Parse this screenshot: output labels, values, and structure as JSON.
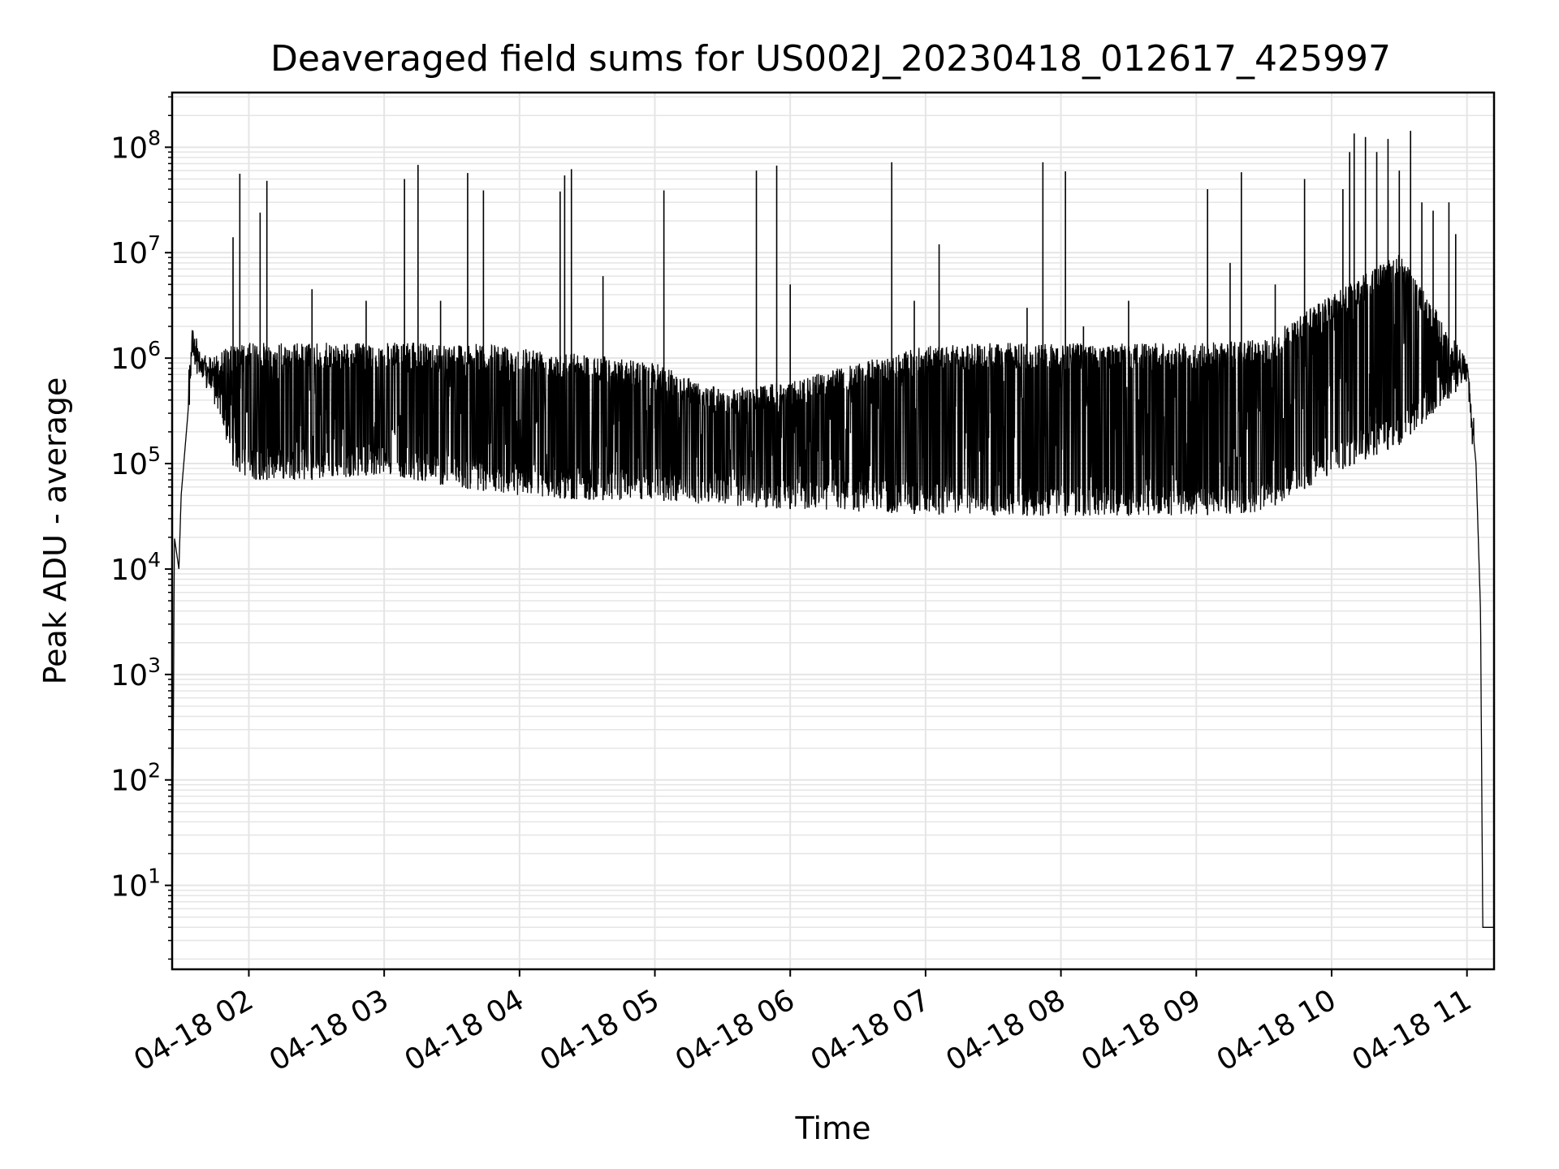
{
  "chart_data": {
    "type": "line",
    "title": "Deaveraged field sums for US002J_20230418_012617_425997",
    "xlabel": "Time",
    "ylabel": "Peak ADU - average",
    "y_scale": "log",
    "xlim": [
      "04-18 01:26",
      "04-18 11:12"
    ],
    "ylim": [
      1.6,
      330000000
    ],
    "grid": true,
    "line_color": "#000000",
    "grid_color": "#e5e5e5",
    "x_ticks": [
      "04-18 02",
      "04-18 03",
      "04-18 04",
      "04-18 05",
      "04-18 06",
      "04-18 07",
      "04-18 08",
      "04-18 09",
      "04-18 10",
      "04-18 11"
    ],
    "y_ticks": [
      {
        "base": "10",
        "exp": "1"
      },
      {
        "base": "10",
        "exp": "2"
      },
      {
        "base": "10",
        "exp": "3"
      },
      {
        "base": "10",
        "exp": "4"
      },
      {
        "base": "10",
        "exp": "5"
      },
      {
        "base": "10",
        "exp": "6"
      },
      {
        "base": "10",
        "exp": "7"
      },
      {
        "base": "10",
        "exp": "8"
      }
    ],
    "series": [
      {
        "x": [
          "04-18 01:26",
          "04-18 01:27",
          "04-18 01:29",
          "04-18 01:30",
          "04-18 01:33",
          "04-18 01:35",
          "04-18 01:38",
          "04-18 01:42",
          "04-18 01:47",
          "04-18 01:52",
          "04-18 02:00",
          "04-18 02:30",
          "04-18 03:00",
          "04-18 03:30",
          "04-18 04:00",
          "04-18 04:30",
          "04-18 05:00",
          "04-18 05:30",
          "04-18 06:00",
          "04-18 06:30",
          "04-18 07:00",
          "04-18 07:30",
          "04-18 08:00",
          "04-18 08:30",
          "04-18 09:00",
          "04-18 09:30",
          "04-18 10:00",
          "04-18 10:30",
          "04-18 11:00",
          "04-18 11:04",
          "04-18 11:06",
          "04-18 11:07",
          "04-18 11:12"
        ],
        "y": [
          3,
          20000,
          10000,
          50000,
          300000,
          1500000,
          800000,
          600000,
          400000,
          350000,
          300000,
          350000,
          400000,
          350000,
          250000,
          180000,
          140000,
          110000,
          90000,
          80000,
          85000,
          90000,
          90000,
          95000,
          110000,
          180000,
          400000,
          900000,
          800000,
          100000,
          4000,
          4,
          4
        ],
        "band_low": [
          3,
          20000,
          10000,
          50000,
          300000,
          1000000,
          600000,
          450000,
          300000,
          100000,
          70000,
          70000,
          80000,
          60000,
          50000,
          45000,
          45000,
          40000,
          37000,
          35000,
          33000,
          32000,
          32000,
          32000,
          32000,
          35000,
          80000,
          150000,
          600000,
          100000,
          4000,
          4,
          4
        ],
        "band_high": [
          3,
          20000,
          10000,
          50000,
          300000,
          2300000,
          1200000,
          1000000,
          1200000,
          1300000,
          1400000,
          1400000,
          1400000,
          1400000,
          1300000,
          1100000,
          900000,
          500000,
          600000,
          900000,
          1300000,
          1400000,
          1400000,
          1400000,
          1400000,
          1500000,
          4000000,
          10000000,
          1000000,
          100000,
          4000,
          4,
          4
        ]
      }
    ],
    "spikes": [
      {
        "x": "04-18 01:53",
        "y": 14000000
      },
      {
        "x": "04-18 01:56",
        "y": 56000000
      },
      {
        "x": "04-18 02:05",
        "y": 24000000
      },
      {
        "x": "04-18 02:08",
        "y": 48000000
      },
      {
        "x": "04-18 02:28",
        "y": 4500000
      },
      {
        "x": "04-18 02:52",
        "y": 3500000
      },
      {
        "x": "04-18 03:09",
        "y": 50000000
      },
      {
        "x": "04-18 03:15",
        "y": 68000000
      },
      {
        "x": "04-18 03:25",
        "y": 3500000
      },
      {
        "x": "04-18 03:37",
        "y": 57000000
      },
      {
        "x": "04-18 03:44",
        "y": 39000000
      },
      {
        "x": "04-18 04:18",
        "y": 38000000
      },
      {
        "x": "04-18 04:20",
        "y": 54000000
      },
      {
        "x": "04-18 04:23",
        "y": 62000000
      },
      {
        "x": "04-18 04:37",
        "y": 6000000
      },
      {
        "x": "04-18 05:04",
        "y": 39000000
      },
      {
        "x": "04-18 05:45",
        "y": 60000000
      },
      {
        "x": "04-18 05:54",
        "y": 67000000
      },
      {
        "x": "04-18 06:00",
        "y": 5000000
      },
      {
        "x": "04-18 06:45",
        "y": 72000000
      },
      {
        "x": "04-18 06:55",
        "y": 3500000
      },
      {
        "x": "04-18 07:06",
        "y": 12000000
      },
      {
        "x": "04-18 07:45",
        "y": 3000000
      },
      {
        "x": "04-18 07:52",
        "y": 72000000
      },
      {
        "x": "04-18 08:02",
        "y": 59000000
      },
      {
        "x": "04-18 08:10",
        "y": 2000000
      },
      {
        "x": "04-18 08:30",
        "y": 3500000
      },
      {
        "x": "04-18 09:05",
        "y": 40000000
      },
      {
        "x": "04-18 09:15",
        "y": 8000000
      },
      {
        "x": "04-18 09:20",
        "y": 58000000
      },
      {
        "x": "04-18 09:35",
        "y": 5000000
      },
      {
        "x": "04-18 09:48",
        "y": 50000000
      },
      {
        "x": "04-18 10:05",
        "y": 40000000
      },
      {
        "x": "04-18 10:08",
        "y": 90000000
      },
      {
        "x": "04-18 10:10",
        "y": 135000000
      },
      {
        "x": "04-18 10:15",
        "y": 125000000
      },
      {
        "x": "04-18 10:20",
        "y": 90000000
      },
      {
        "x": "04-18 10:25",
        "y": 120000000
      },
      {
        "x": "04-18 10:30",
        "y": 60000000
      },
      {
        "x": "04-18 10:35",
        "y": 143000000
      },
      {
        "x": "04-18 10:40",
        "y": 30000000
      },
      {
        "x": "04-18 10:45",
        "y": 25000000
      },
      {
        "x": "04-18 10:52",
        "y": 30000000
      },
      {
        "x": "04-18 10:55",
        "y": 15000000
      }
    ]
  }
}
